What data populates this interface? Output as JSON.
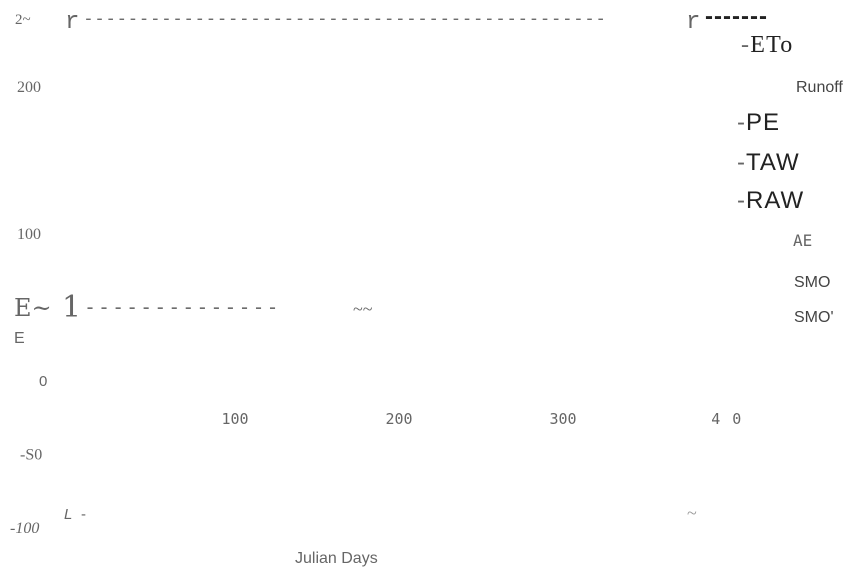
{
  "chart_data": {
    "type": "line",
    "title": "",
    "xlabel": "Julian Days",
    "ylabel": "",
    "y_axis_marker_top": "2~",
    "y_axis_unit_fragment": {
      "large": "E~",
      "small": "E"
    },
    "x_ticks": [
      {
        "label": "100",
        "value": 100
      },
      {
        "label": "200",
        "value": 200
      },
      {
        "label": "300",
        "value": 300
      },
      {
        "label": "4 0",
        "value": 400
      }
    ],
    "y_ticks": [
      {
        "label": "200",
        "value": 200
      },
      {
        "label": "100",
        "value": 100
      },
      {
        "label": "0",
        "value": 0
      },
      {
        "label": "-S0",
        "value": -50
      },
      {
        "label": "-100",
        "value": -100
      }
    ],
    "top_line": {
      "left_marker": "r",
      "right_marker": "r",
      "dash_text": "-----------------------------------------------",
      "tail_text": "-------"
    },
    "mid_line": {
      "marker": "1",
      "dash_text": "--------------",
      "tilde_text": "~~"
    },
    "bottom_line": {
      "marker": "L",
      "dash_text": "-",
      "tilde_text": "~"
    },
    "legend": {
      "placement": "right",
      "items": [
        {
          "name": "ETo",
          "prefix": "-",
          "style": "serif-large"
        },
        {
          "name": "Runoff",
          "prefix": "",
          "style": "sans-small"
        },
        {
          "name": "PE",
          "prefix": "-",
          "style": "sans-large"
        },
        {
          "name": "TAW",
          "prefix": "-",
          "style": "sans-large"
        },
        {
          "name": "RAW",
          "prefix": "-",
          "style": "sans-large"
        },
        {
          "name": "AE",
          "prefix": "",
          "style": "mono-small"
        },
        {
          "name": "SMO",
          "prefix": "",
          "style": "sans-small"
        },
        {
          "name": "SMO'",
          "prefix": "",
          "style": "sans-small"
        }
      ]
    },
    "colors": {
      "text": "#666666",
      "strong": "#222222",
      "dash": "#6c6c6c",
      "light": "#999999"
    }
  }
}
